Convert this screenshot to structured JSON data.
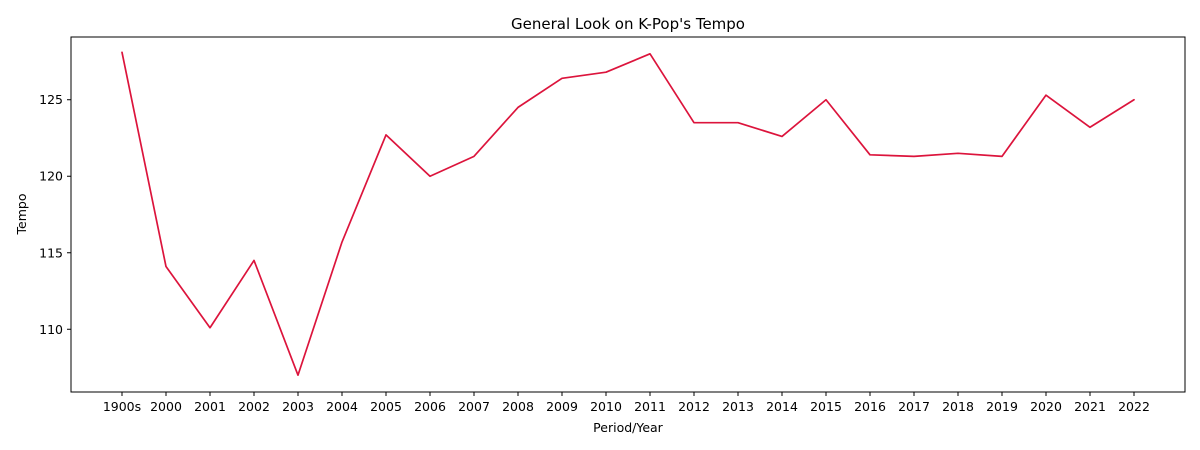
{
  "chart_data": {
    "type": "line",
    "title": "General Look on K-Pop's Tempo",
    "xlabel": "Period/Year",
    "ylabel": "Tempo",
    "categories": [
      "1900s",
      "2000",
      "2001",
      "2002",
      "2003",
      "2004",
      "2005",
      "2006",
      "2007",
      "2008",
      "2009",
      "2010",
      "2011",
      "2012",
      "2013",
      "2014",
      "2015",
      "2016",
      "2017",
      "2018",
      "2019",
      "2020",
      "2021",
      "2022"
    ],
    "series": [
      {
        "values": [
          128.1,
          114.1,
          110.1,
          114.5,
          107.0,
          115.7,
          122.7,
          120.0,
          121.3,
          124.5,
          126.4,
          126.8,
          128.0,
          123.5,
          123.5,
          122.6,
          125.0,
          121.4,
          121.3,
          121.5,
          121.3,
          125.3,
          123.2,
          125.0
        ]
      }
    ],
    "ylim": [
      105.9,
      129.1
    ],
    "yticks": [
      110,
      115,
      120,
      125
    ],
    "grid": false,
    "legend": "none",
    "line_color": "#dc143c"
  }
}
